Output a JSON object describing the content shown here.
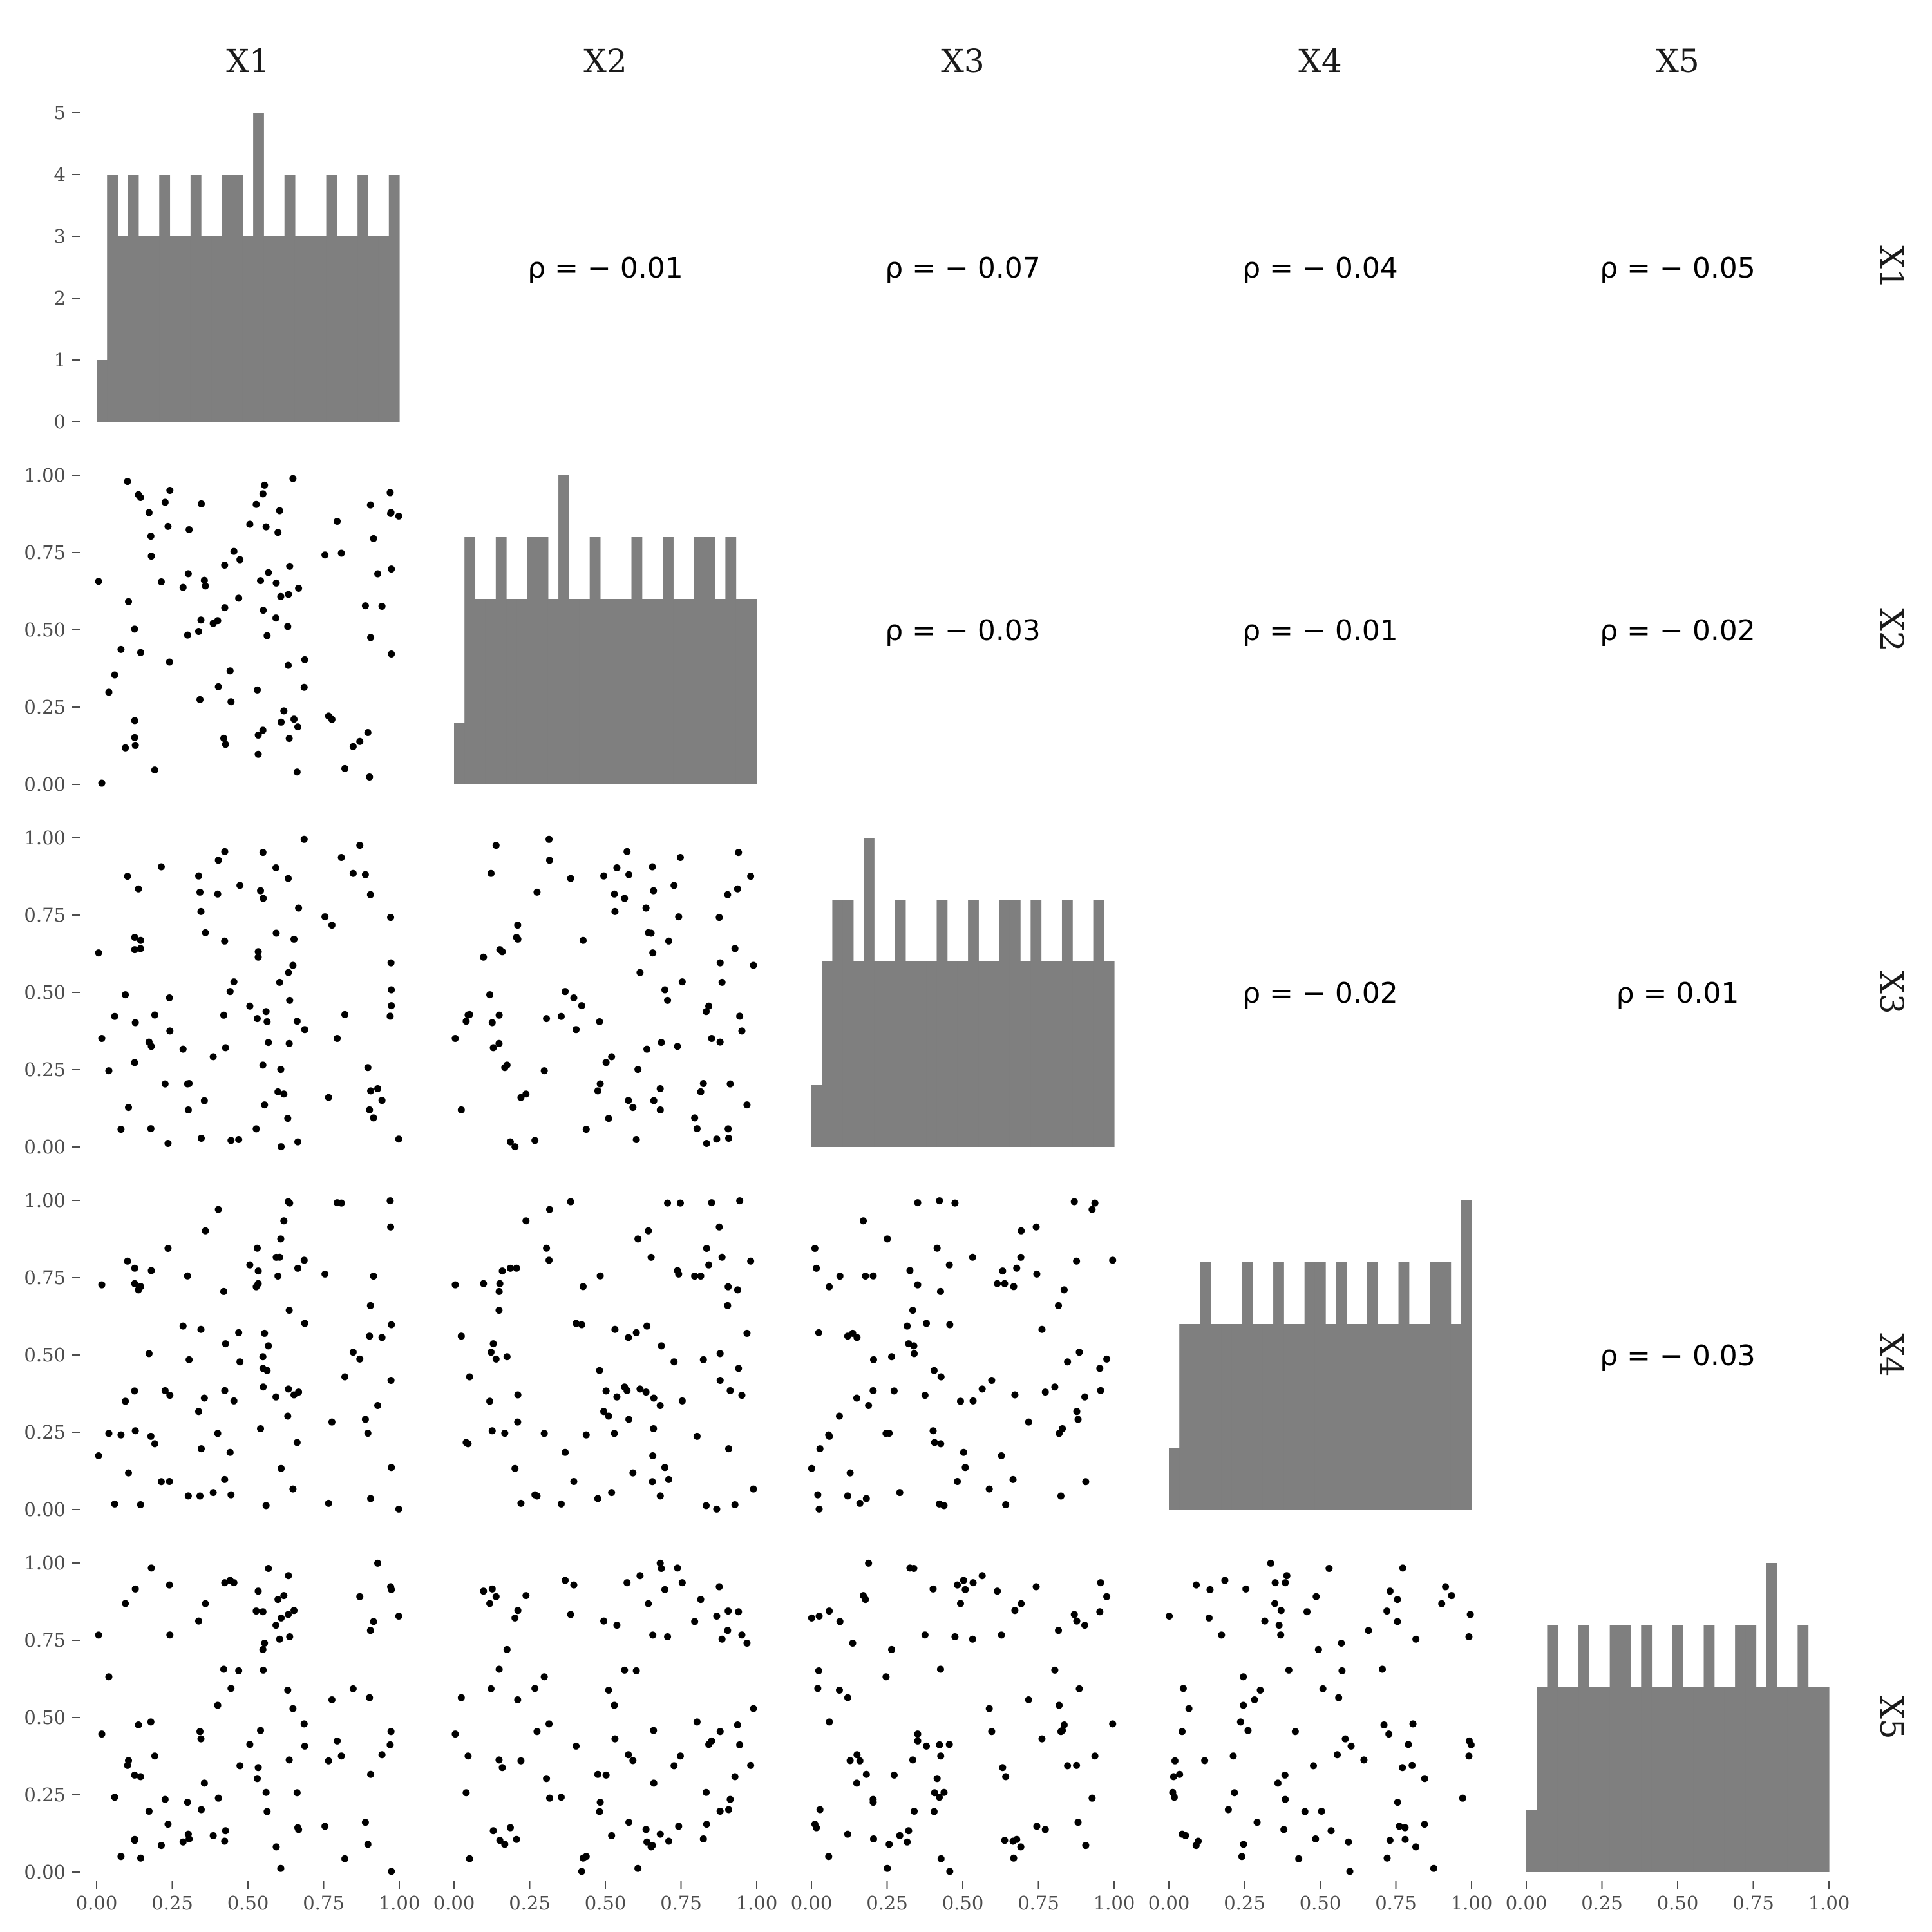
{
  "chart_data": {
    "type": "scatter-matrix",
    "variables": [
      "X1",
      "X2",
      "X3",
      "X4",
      "X5"
    ],
    "diagonal": "histogram",
    "upper": "correlation",
    "lower": "scatter",
    "axis_range": [
      0,
      1
    ],
    "axis_ticks": [
      "0.00",
      "0.25",
      "0.50",
      "0.75",
      "1.00"
    ],
    "hist_ylim": [
      0,
      5
    ],
    "hist_yticks": [
      "0",
      "1",
      "2",
      "3",
      "4",
      "5"
    ],
    "hist_counts": [
      1,
      4,
      3,
      4,
      3,
      3,
      4,
      3,
      3,
      4,
      3,
      3,
      4,
      4,
      3,
      5,
      3,
      3,
      4,
      3,
      3,
      3,
      4,
      3,
      3,
      4,
      3,
      3,
      4
    ],
    "correlations": [
      {
        "row": 1,
        "col": 2,
        "label": "ρ = − 0.01"
      },
      {
        "row": 1,
        "col": 3,
        "label": "ρ = − 0.07"
      },
      {
        "row": 1,
        "col": 4,
        "label": "ρ = − 0.04"
      },
      {
        "row": 1,
        "col": 5,
        "label": "ρ = − 0.05"
      },
      {
        "row": 2,
        "col": 3,
        "label": "ρ = − 0.03"
      },
      {
        "row": 2,
        "col": 4,
        "label": "ρ = − 0.01"
      },
      {
        "row": 2,
        "col": 5,
        "label": "ρ = − 0.02"
      },
      {
        "row": 3,
        "col": 4,
        "label": "ρ = − 0.02"
      },
      {
        "row": 3,
        "col": 5,
        "label": "ρ = 0.01"
      },
      {
        "row": 4,
        "col": 5,
        "label": "ρ = − 0.03"
      }
    ],
    "n_points": 100,
    "point_color": "#000000",
    "bar_color": "#7f7f7f"
  }
}
